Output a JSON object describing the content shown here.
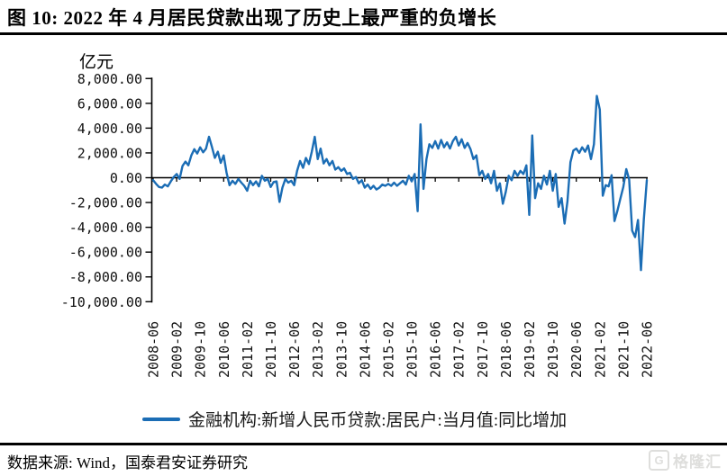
{
  "title": "图 10:  2022 年 4 月居民贷款出现了历史上最严重的负增长",
  "source": "数据来源: Wind，国泰君安证券研究",
  "watermark": {
    "logo_letter": "G",
    "text": "格隆汇"
  },
  "chart_data": {
    "type": "line",
    "title": "2022 年 4 月居民贷款出现了历史上最严重的负增长",
    "unit_label": "亿元",
    "xlabel": "",
    "ylabel": "亿元",
    "ylim": [
      -10000,
      8000
    ],
    "grid": false,
    "legend_position": "bottom",
    "x_start": "2008-06",
    "x_end": "2022-06",
    "x_frequency": "monthly",
    "x_tick_labels": [
      "2008-06",
      "2009-02",
      "2009-10",
      "2010-06",
      "2011-02",
      "2011-10",
      "2012-06",
      "2013-02",
      "2013-10",
      "2014-06",
      "2015-02",
      "2015-10",
      "2016-06",
      "2017-02",
      "2017-10",
      "2018-06",
      "2019-02",
      "2019-10",
      "2020-06",
      "2021-02",
      "2021-10",
      "2022-06"
    ],
    "x_tick_interval_months": 8,
    "y_ticks": [
      8000,
      6000,
      4000,
      2000,
      0,
      -2000,
      -4000,
      -6000,
      -8000,
      -10000
    ],
    "y_tick_labels": [
      "8,000.00",
      "6,000.00",
      "4,000.00",
      "2,000.00",
      "0.00",
      "-2,000.00",
      "-4,000.00",
      "-6,000.00",
      "-8,000.00",
      "-10,000.00"
    ],
    "series": [
      {
        "name": "金融机构:新增人民币贷款:居民户:当月值:同比增加",
        "color": "#1b6db5",
        "values": [
          -200,
          -500,
          -750,
          -800,
          -550,
          -700,
          -300,
          50,
          300,
          -100,
          950,
          1300,
          1000,
          1800,
          2300,
          1950,
          2450,
          2050,
          2350,
          3300,
          2500,
          1600,
          2100,
          1200,
          1800,
          400,
          -600,
          -250,
          -500,
          -100,
          -400,
          -650,
          -1050,
          -250,
          -600,
          -300,
          -700,
          150,
          -250,
          -100,
          -750,
          -350,
          -300,
          -1950,
          -800,
          -100,
          -400,
          -250,
          -600,
          550,
          1350,
          800,
          1600,
          1100,
          2100,
          3300,
          1500,
          2350,
          1150,
          1500,
          1000,
          1350,
          650,
          850,
          550,
          750,
          300,
          400,
          -100,
          50,
          -450,
          -200,
          -800,
          -550,
          -900,
          -650,
          -950,
          -800,
          -550,
          -650,
          -500,
          -650,
          -400,
          -650,
          -450,
          -250,
          -550,
          150,
          -300,
          300,
          -2700,
          4300,
          -900,
          1500,
          2700,
          2400,
          2950,
          2350,
          3050,
          2450,
          2850,
          2350,
          2950,
          3300,
          2600,
          3100,
          2400,
          2800,
          2300,
          1500,
          1800,
          200,
          550,
          -100,
          300,
          -450,
          550,
          -1050,
          -450,
          -2100,
          -1150,
          150,
          -200,
          550,
          150,
          550,
          300,
          1000,
          -3000,
          3400,
          -1650,
          -450,
          -900,
          150,
          -550,
          550,
          -1050,
          300,
          -2350,
          -1650,
          -3700,
          -1900,
          1250,
          2200,
          2350,
          2000,
          2450,
          2100,
          2600,
          1500,
          2700,
          6600,
          5500,
          -1450,
          -600,
          -700,
          200,
          -3500,
          -2650,
          -1700,
          -750,
          700,
          -150,
          -4270,
          -4790,
          -3400,
          -7450,
          -3340,
          -200
        ]
      }
    ]
  }
}
